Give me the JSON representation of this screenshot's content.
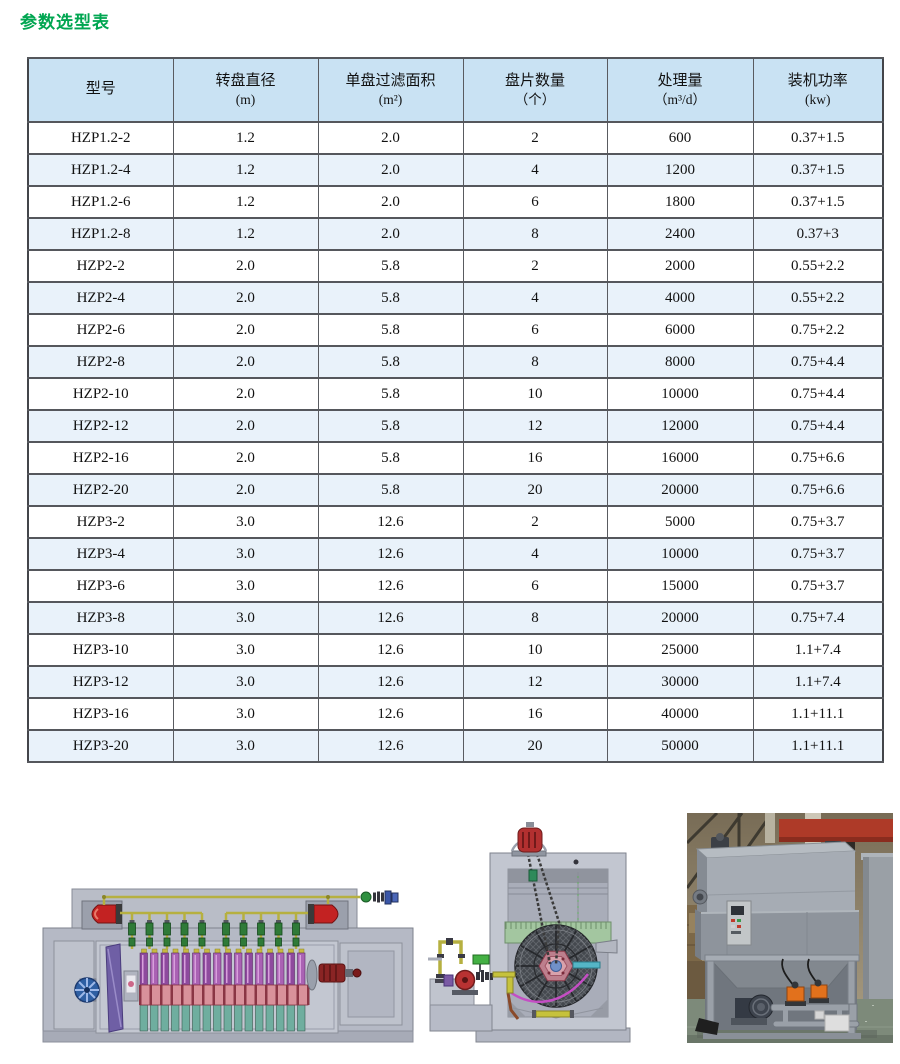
{
  "page": {
    "title": "参数选型表"
  },
  "colors": {
    "title_green": "#00a651",
    "header_blue": "#c9e2f3",
    "row_alt_blue": "#e9f2fa",
    "table_border": "#55575c"
  },
  "table": {
    "columns": [
      {
        "name": "型号",
        "unit": ""
      },
      {
        "name": "转盘直径",
        "unit": "(m)"
      },
      {
        "name": "单盘过滤面积",
        "unit": "(m²)"
      },
      {
        "name": "盘片数量",
        "unit": "（个）"
      },
      {
        "name": "处理量",
        "unit": "（m³/d）"
      },
      {
        "name": "装机功率",
        "unit": "(kw)"
      }
    ],
    "rows": [
      [
        "HZP1.2-2",
        "1.2",
        "2.0",
        "2",
        "600",
        "0.37+1.5"
      ],
      [
        "HZP1.2-4",
        "1.2",
        "2.0",
        "4",
        "1200",
        "0.37+1.5"
      ],
      [
        "HZP1.2-6",
        "1.2",
        "2.0",
        "6",
        "1800",
        "0.37+1.5"
      ],
      [
        "HZP1.2-8",
        "1.2",
        "2.0",
        "8",
        "2400",
        "0.37+3"
      ],
      [
        "HZP2-2",
        "2.0",
        "5.8",
        "2",
        "2000",
        "0.55+2.2"
      ],
      [
        "HZP2-4",
        "2.0",
        "5.8",
        "4",
        "4000",
        "0.55+2.2"
      ],
      [
        "HZP2-6",
        "2.0",
        "5.8",
        "6",
        "6000",
        "0.75+2.2"
      ],
      [
        "HZP2-8",
        "2.0",
        "5.8",
        "8",
        "8000",
        "0.75+4.4"
      ],
      [
        "HZP2-10",
        "2.0",
        "5.8",
        "10",
        "10000",
        "0.75+4.4"
      ],
      [
        "HZP2-12",
        "2.0",
        "5.8",
        "12",
        "12000",
        "0.75+4.4"
      ],
      [
        "HZP2-16",
        "2.0",
        "5.8",
        "16",
        "16000",
        "0.75+6.6"
      ],
      [
        "HZP2-20",
        "2.0",
        "5.8",
        "20",
        "20000",
        "0.75+6.6"
      ],
      [
        "HZP3-2",
        "3.0",
        "12.6",
        "2",
        "5000",
        "0.75+3.7"
      ],
      [
        "HZP3-4",
        "3.0",
        "12.6",
        "4",
        "10000",
        "0.75+3.7"
      ],
      [
        "HZP3-6",
        "3.0",
        "12.6",
        "6",
        "15000",
        "0.75+3.7"
      ],
      [
        "HZP3-8",
        "3.0",
        "12.6",
        "8",
        "20000",
        "0.75+7.4"
      ],
      [
        "HZP3-10",
        "3.0",
        "12.6",
        "10",
        "25000",
        "1.1+7.4"
      ],
      [
        "HZP3-12",
        "3.0",
        "12.6",
        "12",
        "30000",
        "1.1+7.4"
      ],
      [
        "HZP3-16",
        "3.0",
        "12.6",
        "16",
        "40000",
        "1.1+11.1"
      ],
      [
        "HZP3-20",
        "3.0",
        "12.6",
        "20",
        "50000",
        "1.1+11.1"
      ]
    ]
  },
  "figures": {
    "left": "disc-filter-side-view-drawing",
    "middle": "disc-filter-end-view-drawing",
    "right": "disc-filter-product-photo"
  }
}
